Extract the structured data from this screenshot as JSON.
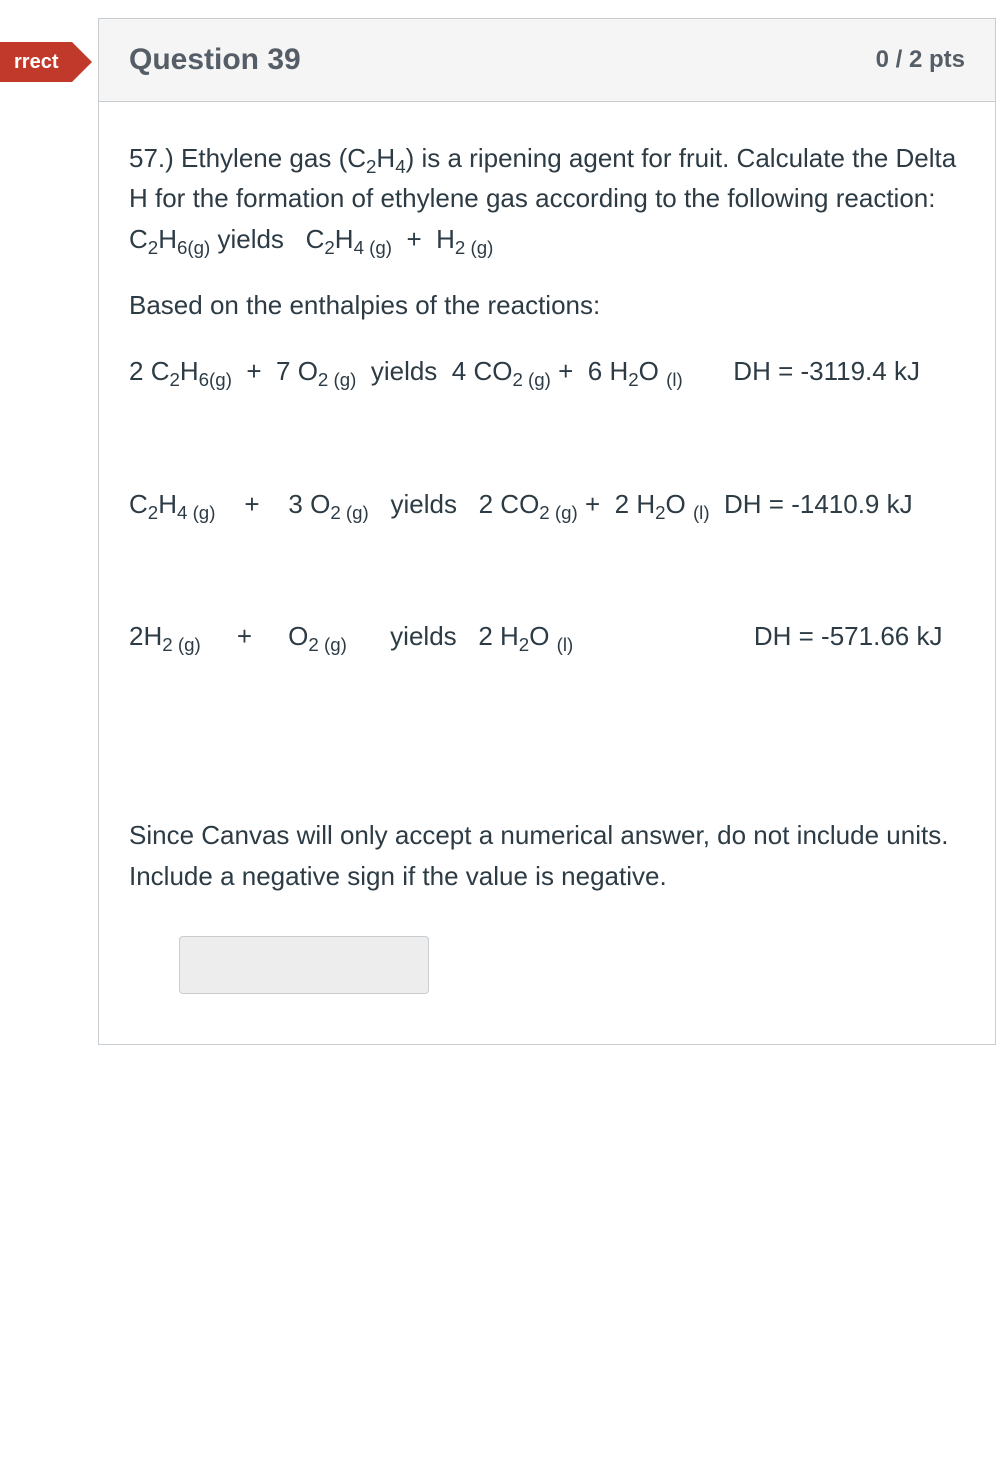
{
  "badge": {
    "text": "rrect",
    "bg": "#c0392b",
    "color": "#ffffff"
  },
  "header": {
    "title": "Question 39",
    "points": "0 / 2 pts",
    "bg": "#f5f5f5",
    "border": "#c7cdd1",
    "text_color": "#555e66",
    "title_fontsize": 30,
    "points_fontsize": 24
  },
  "body": {
    "font_size": 26,
    "text_color": "#2d3b45",
    "paragraphs": {
      "p1": "57.) Ethylene gas (C₂H₄) is a ripening agent for fruit. Calculate the Delta H for the formation of ethylene gas according to the following reaction:  C₂H₆₍g₎ yields   C₂H₄ ₍g₎  +  H₂ ₍g₎",
      "p2": "Based on the enthalpies of the reactions:",
      "p3": "2 C₂H₆₍g₎  +  7 O₂ ₍g₎  yields  4 CO₂ ₍g₎ +  6 H₂O ₍l₎       DH = -3119.4 kJ",
      "p4": "C₂H₄ ₍g₎    +    3 O₂ ₍g₎   yields   2 CO₂ ₍g₎ +  2 H₂O ₍l₎  DH = -1410.9 kJ",
      "p5": "2H₂ ₍g₎     +     O₂ ₍g₎      yields   2 H₂O ₍l₎                       DH = -571.66 kJ",
      "p6": "Since Canvas will only accept a numerical answer, do not include units. Include a negative sign if the value is negative."
    },
    "answer": {
      "value": "",
      "bg": "#ededed",
      "border": "#c7cdd1"
    }
  },
  "formulas": {
    "ethylene": "C<sub>2</sub>H<sub>4</sub>",
    "ethane_g": "C<sub>2</sub>H<sub>6(g)</sub>",
    "ethylene_g": "C<sub>2</sub>H<sub>4 (g)</sub>",
    "h2_g": "H<sub>2 (g)</sub>",
    "o2_g": "O<sub>2 (g)</sub>",
    "co2_g": "CO<sub>2 (g)</sub>",
    "h2o_l": "H<sub>2</sub>O <sub>(l)</sub>"
  }
}
